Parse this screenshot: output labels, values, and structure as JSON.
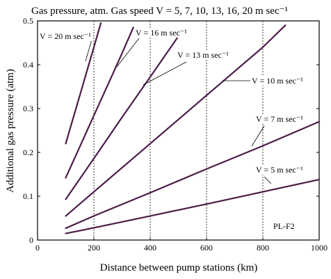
{
  "chart_data": {
    "type": "line",
    "title": "Gas pressure, atm. Gas speed V = 5, 7, 10, 13, 16, 20 m sec⁻¹",
    "xlabel": "Distance between pump stations (km)",
    "ylabel": "Additional gas pressure (atm)",
    "xlim": [
      0,
      1000
    ],
    "ylim": [
      0,
      0.5
    ],
    "xticks": [
      0,
      200,
      400,
      600,
      800,
      1000
    ],
    "yticks": [
      0,
      0.1,
      0.2,
      0.3,
      0.4,
      0.5
    ],
    "xtick_labels": [
      "0",
      "200",
      "400",
      "600",
      "800",
      "1000"
    ],
    "ytick_labels": [
      "0",
      "0.1",
      "0.2",
      "0.3",
      "0.4",
      "0.5"
    ],
    "grid": "vertical dashed at x=200,400,600,800",
    "annotation": "PL-F2",
    "series": [
      {
        "name": "V = 5 m sec⁻¹",
        "x": [
          100,
          200,
          400,
          600,
          800,
          1000
        ],
        "y": [
          0.015,
          0.028,
          0.055,
          0.082,
          0.11,
          0.138
        ]
      },
      {
        "name": "V = 7 m sec⁻¹",
        "x": [
          100,
          200,
          400,
          600,
          800,
          1000
        ],
        "y": [
          0.027,
          0.055,
          0.108,
          0.162,
          0.215,
          0.27
        ]
      },
      {
        "name": "V = 10 m sec⁻¹",
        "x": [
          100,
          200,
          400,
          600,
          800,
          880
        ],
        "y": [
          0.055,
          0.11,
          0.22,
          0.33,
          0.44,
          0.49
        ]
      },
      {
        "name": "V = 13 m sec⁻¹",
        "x": [
          100,
          200,
          300,
          400,
          500
        ],
        "y": [
          0.093,
          0.186,
          0.28,
          0.372,
          0.465
        ]
      },
      {
        "name": "V = 16 m sec⁻¹",
        "x": [
          100,
          150,
          200,
          250,
          300,
          340
        ],
        "y": [
          0.142,
          0.213,
          0.284,
          0.355,
          0.426,
          0.485
        ]
      },
      {
        "name": "V = 20 m sec⁻¹",
        "x": [
          100,
          125,
          150,
          175,
          200,
          225
        ],
        "y": [
          0.22,
          0.275,
          0.33,
          0.385,
          0.44,
          0.495
        ]
      }
    ]
  }
}
